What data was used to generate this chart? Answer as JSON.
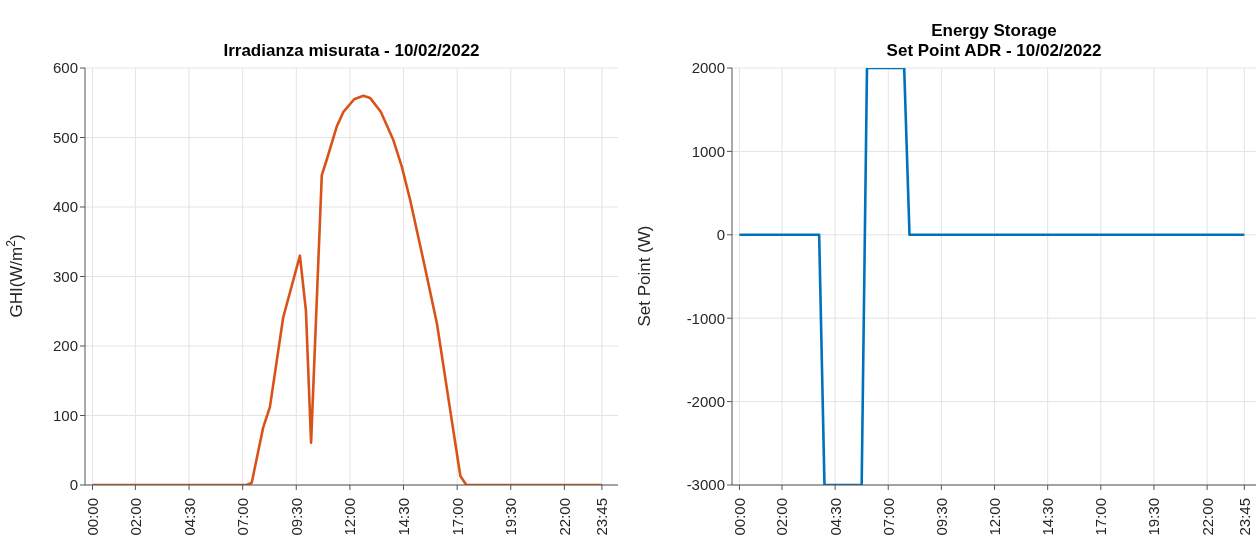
{
  "chart_data": [
    {
      "type": "line",
      "title": "Irradianza misurata - 10/02/2022",
      "ylabel": "GHI(W/m$^{2}$)",
      "series": [
        {
          "color": "#d95319",
          "x": [
            0,
            7.18,
            7.42,
            7.96,
            8.27,
            8.89,
            9.67,
            9.95,
            10.19,
            10.69,
            10.92,
            11.39,
            11.7,
            12.2,
            12.63,
            12.94,
            13.44,
            14.03,
            14.42,
            14.81,
            15.43,
            16.06,
            16.68,
            17.15,
            17.43,
            23.75
          ],
          "values": [
            0,
            0,
            3,
            83,
            112,
            241,
            330,
            251,
            61,
            446,
            468,
            516,
            537,
            555,
            560,
            557,
            537,
            496,
            458,
            410,
            323,
            232,
            107,
            13,
            0,
            0
          ]
        }
      ],
      "xlim": [
        -0.35,
        24.5
      ],
      "xticks": [
        {
          "value": 0,
          "label": "00:00"
        },
        {
          "value": 2,
          "label": "02:00"
        },
        {
          "value": 4.5,
          "label": "04:30"
        },
        {
          "value": 7,
          "label": "07:00"
        },
        {
          "value": 9.5,
          "label": "09:30"
        },
        {
          "value": 12,
          "label": "12:00"
        },
        {
          "value": 14.5,
          "label": "14:30"
        },
        {
          "value": 17,
          "label": "17:00"
        },
        {
          "value": 19.5,
          "label": "19:30"
        },
        {
          "value": 22,
          "label": "22:00"
        },
        {
          "value": 23.75,
          "label": "23:45"
        }
      ],
      "ylim": [
        0,
        600
      ],
      "yticks": [
        0,
        100,
        200,
        300,
        400,
        500,
        600
      ],
      "grid": true,
      "marker": "none",
      "line_style": "solid"
    },
    {
      "type": "line",
      "title": "Energy Storage\nSet Point ADR - 10/02/2022",
      "ylabel": "Set Point (W)",
      "series": [
        {
          "color": "#0072bd",
          "x": [
            0,
            3.75,
            4,
            5.75,
            6,
            7.75,
            8,
            23.75
          ],
          "values": [
            0,
            0,
            -3000,
            -3000,
            2000,
            2000,
            0,
            0
          ]
        }
      ],
      "xlim": [
        -0.35,
        24.3
      ],
      "xticks": [
        {
          "value": 0,
          "label": "00:00"
        },
        {
          "value": 2,
          "label": "02:00"
        },
        {
          "value": 4.5,
          "label": "04:30"
        },
        {
          "value": 7,
          "label": "07:00"
        },
        {
          "value": 9.5,
          "label": "09:30"
        },
        {
          "value": 12,
          "label": "12:00"
        },
        {
          "value": 14.5,
          "label": "14:30"
        },
        {
          "value": 17,
          "label": "17:00"
        },
        {
          "value": 19.5,
          "label": "19:30"
        },
        {
          "value": 22,
          "label": "22:00"
        },
        {
          "value": 23.75,
          "label": "23:45"
        }
      ],
      "ylim": [
        -3000,
        2000
      ],
      "yticks": [
        -3000,
        -2000,
        -1000,
        0,
        1000,
        2000
      ],
      "grid": true,
      "marker": "none",
      "line_style": "solid"
    }
  ]
}
